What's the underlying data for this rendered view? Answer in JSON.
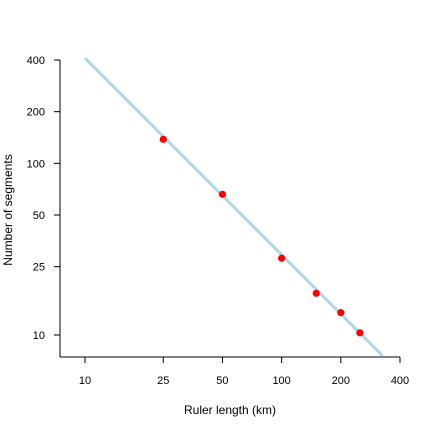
{
  "chart_data": {
    "type": "scatter",
    "title": "",
    "xlabel": "Ruler length (km)",
    "ylabel": "Number of segments",
    "x_scale": "log",
    "y_scale": "log",
    "xlim": [
      8.5,
      420
    ],
    "ylim": [
      7.6,
      400
    ],
    "x_ticks": [
      10,
      25,
      50,
      100,
      200,
      400
    ],
    "x_tick_labels": [
      "10",
      "25",
      "50",
      "100",
      "200",
      "400"
    ],
    "y_ticks": [
      10,
      25,
      50,
      100,
      200,
      400
    ],
    "y_tick_labels": [
      "10",
      "25",
      "50",
      "100",
      "200",
      "400"
    ],
    "grid": false,
    "series": [
      {
        "kind": "points",
        "color": "#ff0000",
        "x": [
          25,
          50,
          100,
          150,
          200,
          250
        ],
        "y": [
          138,
          66,
          28,
          17.5,
          13.5,
          10.3
        ]
      },
      {
        "kind": "fit-line",
        "color": "#add8e6",
        "x": [
          10,
          325
        ],
        "y": [
          410,
          7.6
        ]
      }
    ]
  }
}
